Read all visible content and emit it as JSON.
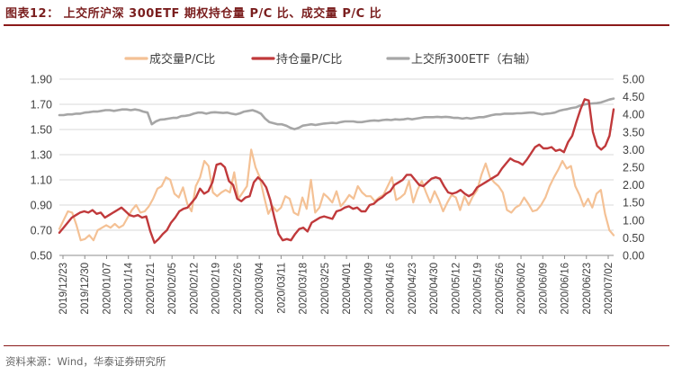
{
  "title": "图表12： 上交所沪深 300ETF 期权持仓量 P/C 比、成交量 P/C 比",
  "source": "资料来源：Wind，华泰证券研究所",
  "chart_data": {
    "type": "line",
    "left_axis": {
      "min": 0.5,
      "max": 1.9,
      "ticks": [
        "0.50",
        "0.70",
        "0.90",
        "1.10",
        "1.30",
        "1.50",
        "1.70",
        "1.90"
      ]
    },
    "right_axis": {
      "min": 0.0,
      "max": 5.0,
      "ticks": [
        "0.00",
        "0.50",
        "1.00",
        "1.50",
        "2.00",
        "2.50",
        "3.00",
        "3.50",
        "4.00",
        "4.50",
        "5.00"
      ]
    },
    "x_tick_labels": [
      "2019/12/23",
      "2019/12/30",
      "2020/01/07",
      "2020/01/14",
      "2020/01/21",
      "2020/02/05",
      "2020/02/12",
      "2020/02/19",
      "2020/02/26",
      "2020/03/04",
      "2020/03/11",
      "2020/03/18",
      "2020/03/25",
      "2020/04/01",
      "2020/04/09",
      "2020/04/16",
      "2020/04/23",
      "2020/04/30",
      "2020/05/12",
      "2020/05/19",
      "2020/05/26",
      "2020/06/02",
      "2020/06/09",
      "2020/06/16",
      "2020/06/23",
      "2020/07/02"
    ],
    "colors": {
      "volume": "#f4c195",
      "oi": "#c0393b",
      "etf": "#a6a6a6",
      "grid": "#d9d9d9"
    },
    "series": [
      {
        "name": "成交量P/C比",
        "axis": "left",
        "values": [
          0.71,
          0.78,
          0.85,
          0.84,
          0.74,
          0.62,
          0.63,
          0.66,
          0.62,
          0.7,
          0.72,
          0.74,
          0.72,
          0.75,
          0.72,
          0.74,
          0.8,
          0.86,
          0.9,
          0.84,
          0.85,
          0.89,
          0.95,
          1.03,
          1.05,
          1.12,
          1.1,
          0.99,
          0.96,
          1.04,
          0.91,
          0.85,
          1.05,
          1.12,
          1.25,
          1.21,
          1.0,
          0.97,
          1.0,
          1.02,
          1.0,
          1.16,
          0.95,
          1.0,
          1.05,
          1.34,
          1.2,
          1.12,
          0.97,
          0.83,
          0.89,
          0.85,
          0.88,
          0.97,
          0.95,
          0.84,
          0.82,
          0.96,
          0.87,
          1.1,
          0.84,
          0.88,
          0.99,
          0.96,
          0.92,
          1.01,
          0.89,
          0.93,
          0.98,
          0.95,
          1.05,
          1.0,
          0.97,
          0.97,
          0.93,
          0.96,
          0.98,
          1.05,
          1.12,
          0.94,
          0.96,
          0.99,
          1.09,
          0.92,
          1.02,
          1.09,
          1.0,
          0.92,
          1.01,
          0.94,
          0.85,
          0.92,
          0.98,
          0.96,
          0.86,
          0.97,
          0.9,
          0.97,
          1.02,
          1.14,
          1.23,
          1.12,
          1.08,
          1.05,
          1.0,
          0.86,
          0.84,
          0.88,
          0.9,
          0.96,
          0.91,
          0.85,
          0.86,
          0.9,
          0.96,
          1.05,
          1.12,
          1.18,
          1.25,
          1.19,
          1.21,
          1.05,
          0.98,
          0.89,
          0.95,
          0.88,
          0.99,
          1.02,
          0.83,
          0.7,
          0.66
        ]
      },
      {
        "name": "持仓量P/C比",
        "axis": "left",
        "values": [
          0.68,
          0.72,
          0.76,
          0.8,
          0.82,
          0.84,
          0.85,
          0.84,
          0.86,
          0.83,
          0.84,
          0.8,
          0.82,
          0.84,
          0.86,
          0.88,
          0.85,
          0.82,
          0.81,
          0.82,
          0.8,
          0.81,
          0.69,
          0.6,
          0.63,
          0.67,
          0.7,
          0.76,
          0.8,
          0.85,
          0.87,
          0.88,
          0.92,
          0.96,
          1.03,
          0.99,
          1.01,
          1.08,
          1.22,
          1.23,
          1.2,
          1.09,
          1.06,
          0.95,
          0.93,
          0.96,
          0.97,
          1.08,
          1.12,
          1.09,
          1.04,
          0.94,
          0.8,
          0.67,
          0.62,
          0.63,
          0.62,
          0.67,
          0.71,
          0.72,
          0.69,
          0.76,
          0.78,
          0.8,
          0.81,
          0.8,
          0.79,
          0.85,
          0.86,
          0.88,
          0.89,
          0.87,
          0.88,
          0.85,
          0.85,
          0.9,
          0.91,
          0.94,
          0.96,
          0.99,
          1.01,
          1.06,
          1.08,
          1.1,
          1.14,
          1.14,
          1.1,
          1.06,
          1.05,
          1.08,
          1.11,
          1.12,
          1.11,
          1.05,
          1.0,
          0.99,
          1.0,
          1.02,
          0.99,
          0.97,
          0.99,
          1.04,
          1.06,
          1.08,
          1.1,
          1.12,
          1.14,
          1.19,
          1.23,
          1.27,
          1.25,
          1.24,
          1.22,
          1.26,
          1.31,
          1.36,
          1.38,
          1.35,
          1.35,
          1.36,
          1.33,
          1.34,
          1.32,
          1.4,
          1.45,
          1.56,
          1.66,
          1.74,
          1.73,
          1.48,
          1.37,
          1.34,
          1.37,
          1.45,
          1.66
        ]
      },
      {
        "name": "上交所300ETF（右轴）",
        "axis": "right",
        "values": [
          3.98,
          3.98,
          4.0,
          4.0,
          4.02,
          4.02,
          4.05,
          4.06,
          4.08,
          4.08,
          4.1,
          4.12,
          4.12,
          4.1,
          4.12,
          4.14,
          4.14,
          4.12,
          4.14,
          4.12,
          4.08,
          4.05,
          3.72,
          3.8,
          3.85,
          3.86,
          3.88,
          3.9,
          3.9,
          3.95,
          3.96,
          3.98,
          4.02,
          4.05,
          4.05,
          4.02,
          4.05,
          4.06,
          4.05,
          4.04,
          4.05,
          4.02,
          4.0,
          4.03,
          4.08,
          4.1,
          4.12,
          4.08,
          4.02,
          3.88,
          3.78,
          3.75,
          3.72,
          3.72,
          3.68,
          3.62,
          3.58,
          3.62,
          3.68,
          3.7,
          3.72,
          3.7,
          3.72,
          3.74,
          3.75,
          3.76,
          3.75,
          3.78,
          3.8,
          3.8,
          3.8,
          3.78,
          3.78,
          3.8,
          3.82,
          3.83,
          3.82,
          3.84,
          3.85,
          3.84,
          3.86,
          3.85,
          3.86,
          3.88,
          3.86,
          3.88,
          3.9,
          3.92,
          3.92,
          3.92,
          3.93,
          3.92,
          3.93,
          3.92,
          3.9,
          3.9,
          3.88,
          3.9,
          3.88,
          3.9,
          3.92,
          3.92,
          3.95,
          3.98,
          4.0,
          4.0,
          4.02,
          4.02,
          4.02,
          4.03,
          4.03,
          4.04,
          4.05,
          4.05,
          4.02,
          4.0,
          4.02,
          4.03,
          4.05,
          4.1,
          4.13,
          4.15,
          4.18,
          4.2,
          4.25,
          4.28,
          4.3,
          4.31,
          4.32,
          4.34,
          4.38,
          4.42,
          4.45
        ]
      }
    ]
  }
}
